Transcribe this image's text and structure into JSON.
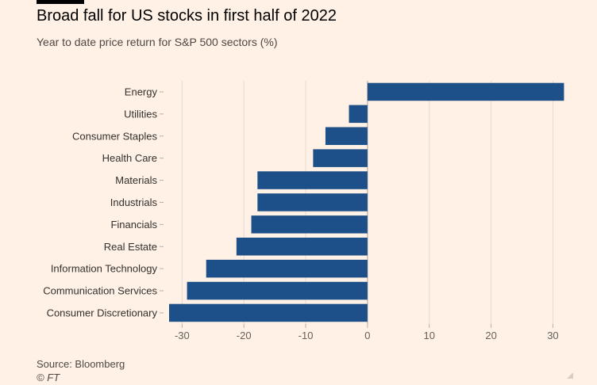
{
  "chart_data": {
    "type": "bar",
    "orientation": "horizontal",
    "title": "Broad fall for US stocks in first half of 2022",
    "subtitle": "Year to date price return for S&P 500 sectors (%)",
    "categories": [
      "Energy",
      "Utilities",
      "Consumer Staples",
      "Health Care",
      "Materials",
      "Industrials",
      "Financials",
      "Real Estate",
      "Information Technology",
      "Communication Services",
      "Consumer Discretionary"
    ],
    "values": [
      31.8,
      -3.0,
      -6.8,
      -8.8,
      -17.8,
      -17.8,
      -18.8,
      -21.2,
      -26.1,
      -29.2,
      -32.1
    ],
    "xlim": [
      -32.1,
      32
    ],
    "xticks": [
      -30,
      -20,
      -10,
      0,
      10,
      20,
      30
    ],
    "grid": true,
    "bar_color": "#1d5088"
  },
  "footer": {
    "source": "Source: Bloomberg",
    "copyright": "© FT"
  }
}
